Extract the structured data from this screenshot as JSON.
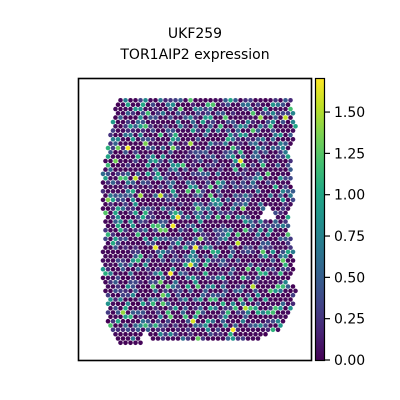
{
  "chart_data": {
    "type": "scatter",
    "title": "UKF259",
    "subtitle": "TOR1AIP2 expression",
    "xlabel": "",
    "ylabel": "",
    "colorbar": {
      "range": [
        0,
        1.7
      ],
      "ticks": [
        0.0,
        0.25,
        0.5,
        0.75,
        1.0,
        1.25,
        1.5
      ],
      "tick_labels": [
        "0.00",
        "0.25",
        "0.50",
        "0.75",
        "1.00",
        "1.25",
        "1.50"
      ],
      "colormap": "viridis",
      "placement": "right"
    },
    "grid": false,
    "frame_color": "#000000",
    "background": "#ffffff"
  }
}
